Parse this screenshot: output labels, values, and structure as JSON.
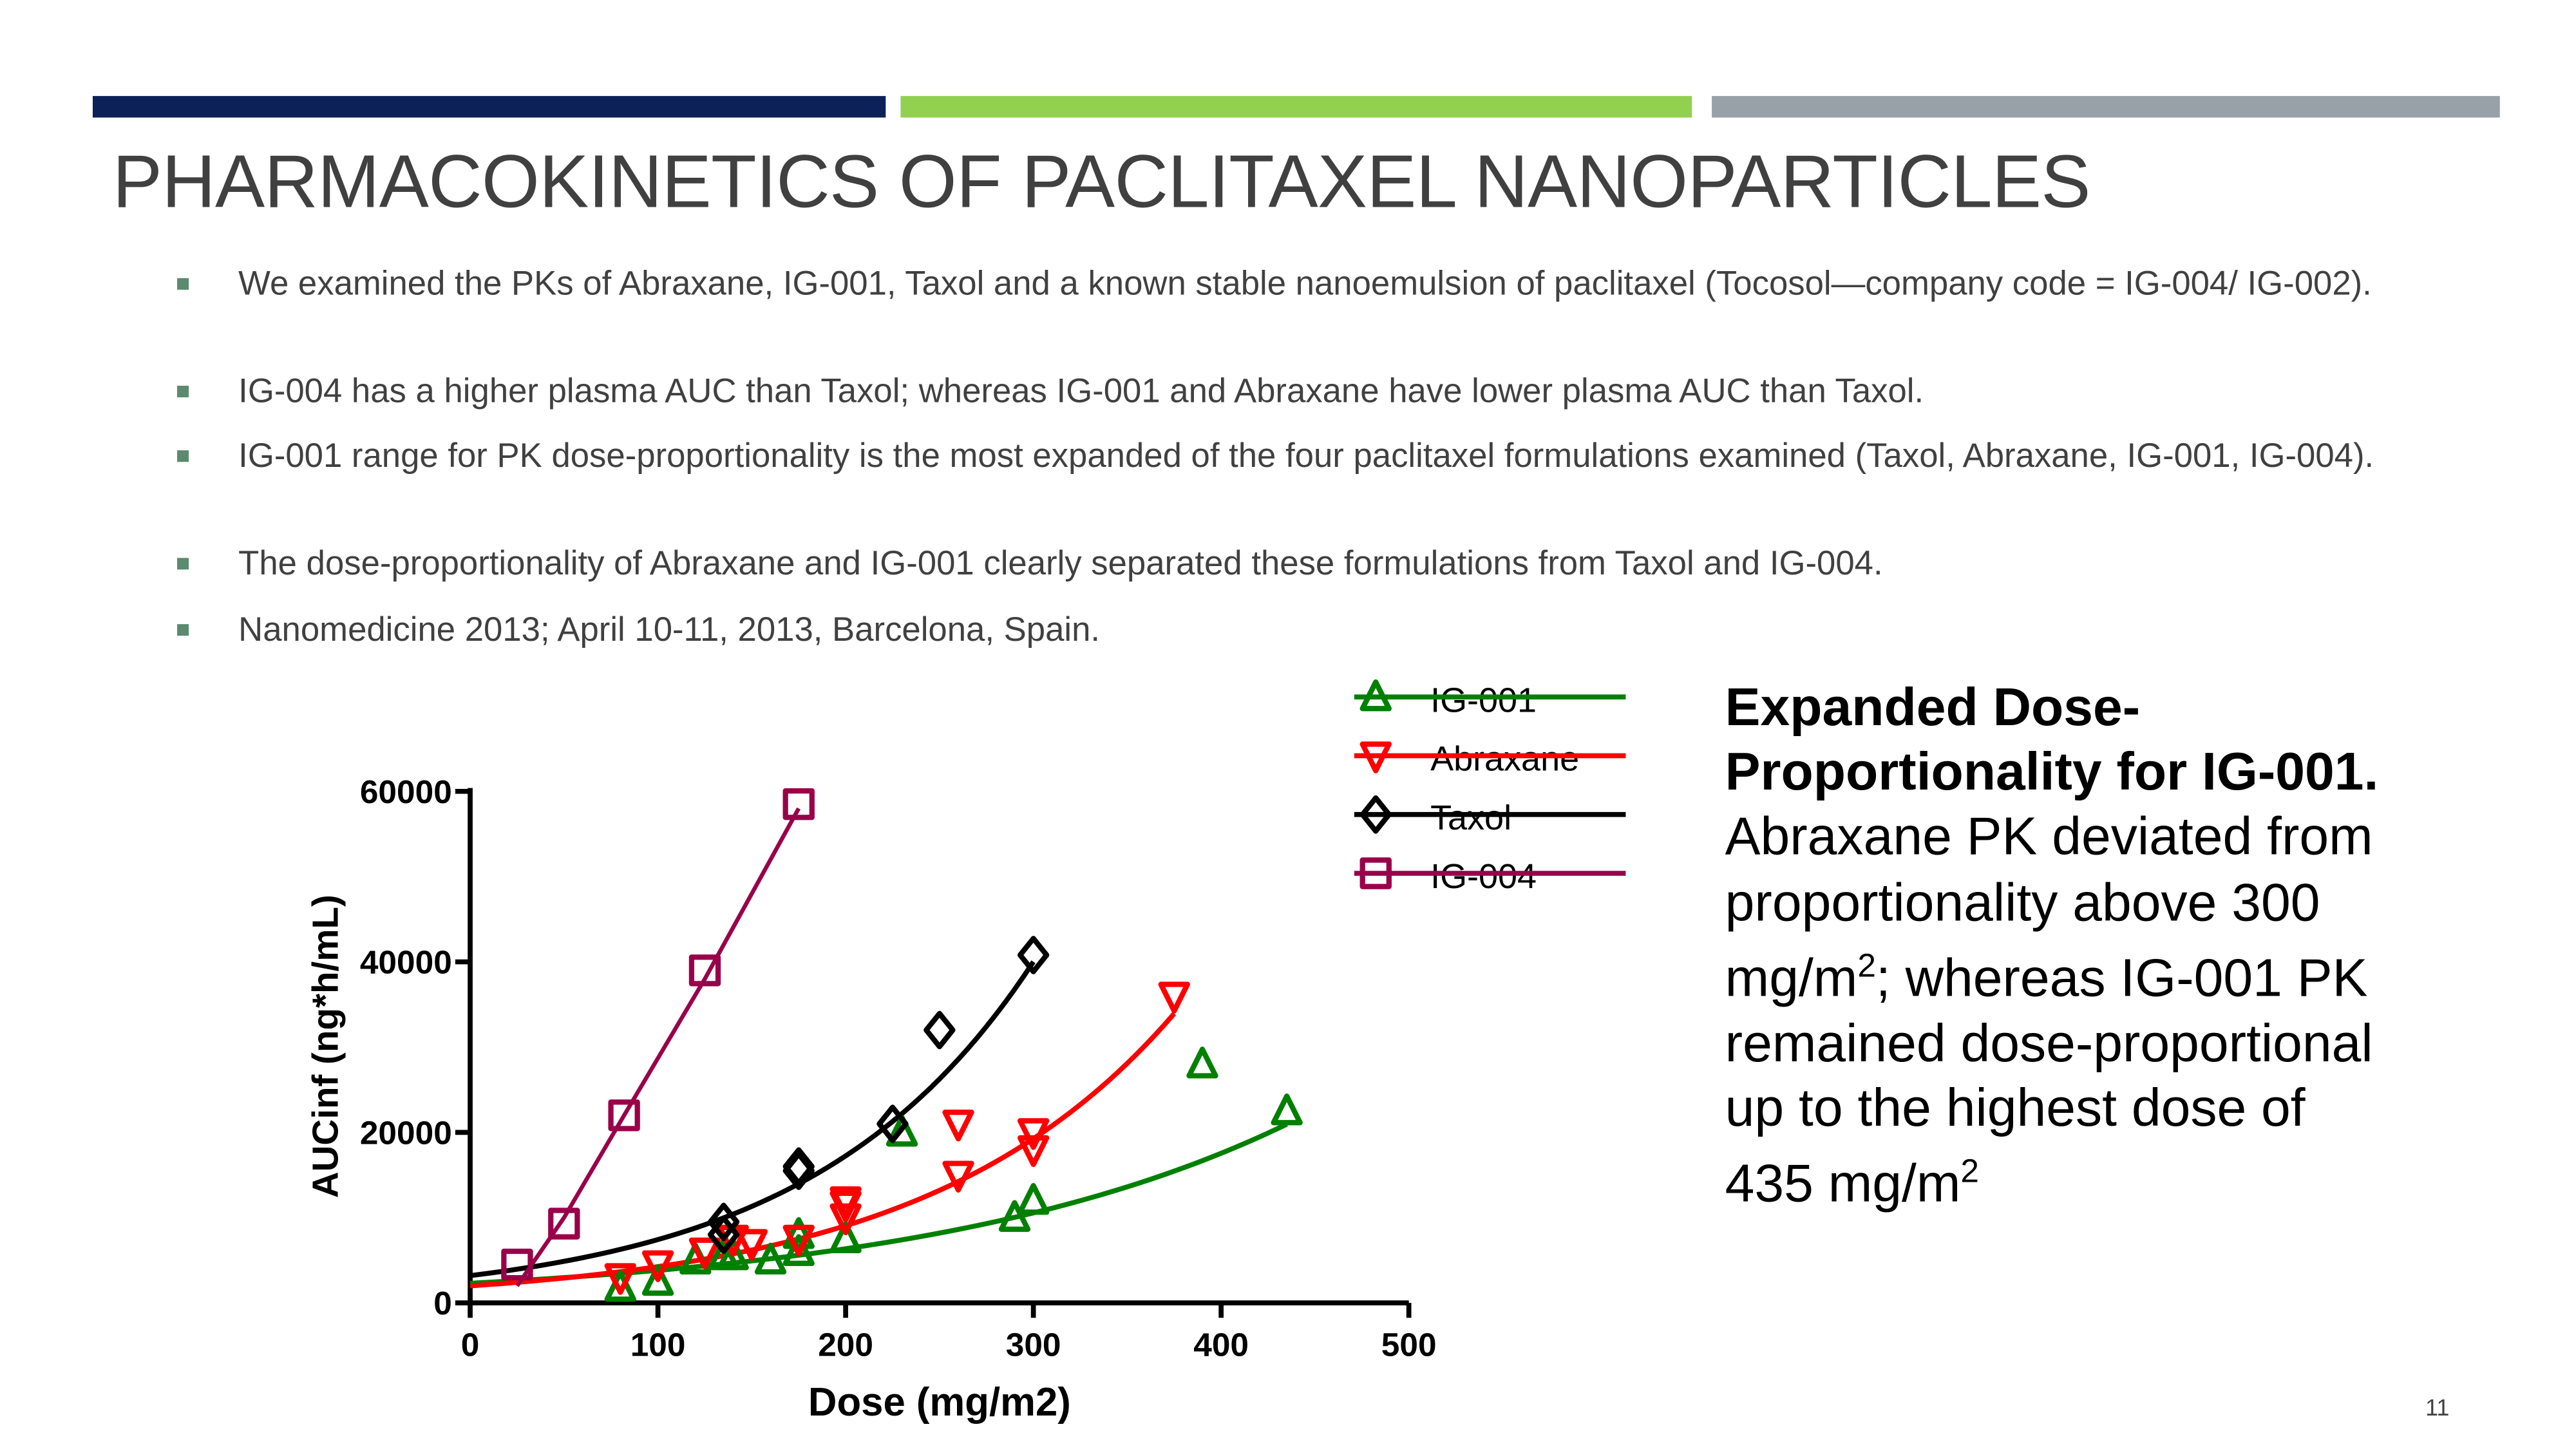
{
  "colors": {
    "bar_navy": "#0c2157",
    "bar_green": "#92d050",
    "bar_gray": "#98a0a8",
    "bullet": "#5b8a6e",
    "title": "#404040"
  },
  "title": "PHARMACOKINETICS OF PACLITAXEL NANOPARTICLES",
  "bullets": [
    "We examined the PKs of Abraxane, IG-001, Taxol and a known stable nanoemulsion of paclitaxel (Tocosol—company code = IG-004/ IG-002).",
    "IG-004 has a higher plasma AUC than Taxol; whereas IG-001 and Abraxane have lower plasma AUC than Taxol.",
    "IG-001 range for PK dose-proportionality is the most expanded of the four paclitaxel formulations examined (Taxol, Abraxane, IG-001, IG-004).",
    "The dose-proportionality of Abraxane and IG-001 clearly separated these formulations from Taxol and IG-004.",
    "Nanomedicine 2013; April 10-11, 2013, Barcelona, Spain."
  ],
  "side_text": {
    "bold": "Expanded Dose-Proportionality  for IG-001.",
    "part1": " Abraxane PK deviated from proportionality above 300 mg/m",
    "sup1": "2",
    "part2": "; whereas IG-001 PK remained dose-proportional up to the highest dose of 435 mg/m",
    "sup2": "2"
  },
  "page_number": "11",
  "chart_data": {
    "type": "scatter",
    "title": "",
    "xlabel": "Dose (mg/m2)",
    "ylabel": "AUCinf (ng*h/mL)",
    "xlim": [
      0,
      500
    ],
    "ylim": [
      0,
      60000
    ],
    "xticks": [
      "0",
      "100",
      "200",
      "300",
      "400",
      "500"
    ],
    "yticks": [
      "0",
      "20000",
      "40000",
      "60000"
    ],
    "grid": false,
    "legend_position": "top-right",
    "series": [
      {
        "name": "IG-001",
        "color": "#008000",
        "marker": "triangle-up",
        "points": [
          [
            80,
            1800
          ],
          [
            100,
            2500
          ],
          [
            120,
            5000
          ],
          [
            135,
            5500
          ],
          [
            140,
            5500
          ],
          [
            160,
            5000
          ],
          [
            175,
            6000
          ],
          [
            175,
            8000
          ],
          [
            200,
            7500
          ],
          [
            230,
            20000
          ],
          [
            290,
            10000
          ],
          [
            300,
            12000
          ],
          [
            390,
            28000
          ],
          [
            435,
            22500
          ]
        ],
        "fit": {
          "type": "exponential",
          "a": 2300,
          "b": 0.00508,
          "xrange": [
            0,
            435
          ]
        }
      },
      {
        "name": "Abraxane",
        "color": "#ff0000",
        "marker": "triangle-down",
        "points": [
          [
            80,
            3000
          ],
          [
            100,
            4500
          ],
          [
            125,
            6000
          ],
          [
            140,
            7500
          ],
          [
            150,
            7000
          ],
          [
            175,
            7500
          ],
          [
            200,
            10000
          ],
          [
            200,
            11500
          ],
          [
            200,
            12000
          ],
          [
            260,
            15000
          ],
          [
            260,
            21000
          ],
          [
            300,
            18000
          ],
          [
            300,
            20000
          ],
          [
            375,
            36000
          ]
        ],
        "fit": {
          "type": "exponential",
          "a": 2000,
          "b": 0.00755,
          "xrange": [
            0,
            375
          ]
        }
      },
      {
        "name": "Taxol",
        "color": "#000000",
        "marker": "diamond",
        "points": [
          [
            135,
            8000
          ],
          [
            135,
            9500
          ],
          [
            175,
            15500
          ],
          [
            175,
            16000
          ],
          [
            225,
            21000
          ],
          [
            250,
            32000
          ],
          [
            300,
            40800
          ]
        ],
        "fit": {
          "type": "exponential",
          "a": 3200,
          "b": 0.00842,
          "xrange": [
            0,
            300
          ]
        }
      },
      {
        "name": "IG-004",
        "color": "#990049",
        "marker": "square",
        "points": [
          [
            25,
            4500
          ],
          [
            50,
            9300
          ],
          [
            82,
            22000
          ],
          [
            125,
            39000
          ],
          [
            175,
            58500
          ]
        ],
        "fit": {
          "type": "polyline",
          "points": [
            [
              25,
              2000
            ],
            [
              50,
              10000
            ],
            [
              82,
              22000
            ],
            [
              125,
              38000
            ],
            [
              175,
              58000
            ]
          ]
        }
      }
    ]
  }
}
